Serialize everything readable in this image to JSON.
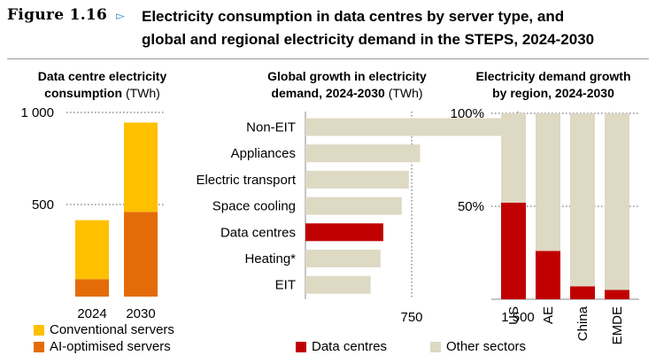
{
  "figure": {
    "label": "Figure 1.16",
    "title_line1": "Electricity consumption in data centres by server type, and",
    "title_line2": "global and regional electricity demand in the STEPS, 2024-2030"
  },
  "colors": {
    "conventional": "#FFC000",
    "ai_optimised": "#E36C09",
    "data_centres": "#C00000",
    "other_sectors": "#DDD9C3",
    "accent": "#3A8FC4"
  },
  "chart_data": [
    {
      "type": "bar",
      "stacked": true,
      "title_bold": "Data centre electricity consumption",
      "title_unit": "(TWh)",
      "categories": [
        "2024",
        "2030"
      ],
      "series": [
        {
          "name": "AI-optimised servers",
          "color_key": "ai_optimised",
          "values": [
            95,
            460
          ]
        },
        {
          "name": "Conventional servers",
          "color_key": "conventional",
          "values": [
            320,
            485
          ]
        }
      ],
      "ylim": [
        0,
        1000
      ],
      "yticks": [
        500,
        1000
      ],
      "ytick_labels": [
        "500",
        "1 000"
      ],
      "grid": "dotted"
    },
    {
      "type": "bar",
      "orientation": "horizontal",
      "title_line1": "Global growth in electricity",
      "title_line2_bold": "demand, 2024-2030",
      "title_unit": "(TWh)",
      "categories": [
        "Non-EIT",
        "Appliances",
        "Electric transport",
        "Space cooling",
        "Data centres",
        "Heating*",
        "EIT"
      ],
      "values": [
        1480,
        810,
        730,
        680,
        550,
        530,
        460
      ],
      "highlight": "Data centres",
      "xlim": [
        0,
        1650
      ],
      "xticks": [
        750,
        1500
      ],
      "xtick_labels": [
        "750",
        "1 500"
      ],
      "grid": "dotted"
    },
    {
      "type": "bar",
      "stacked": true,
      "title_line1": "Electricity demand growth",
      "title_line2": "by region, 2024-2030",
      "categories": [
        "US",
        "AE",
        "China",
        "EMDE"
      ],
      "series": [
        {
          "name": "Data centres",
          "color_key": "data_centres",
          "values": [
            52,
            26,
            7,
            5
          ]
        },
        {
          "name": "Other sectors",
          "color_key": "other_sectors",
          "values": [
            48,
            74,
            93,
            95
          ]
        }
      ],
      "ylim": [
        0,
        100
      ],
      "yticks": [
        50,
        100
      ],
      "ytick_labels": [
        "50%",
        "100%"
      ],
      "grid": "dotted"
    }
  ],
  "legend": {
    "conventional": "Conventional servers",
    "ai_optimised": "AI-optimised servers",
    "data_centres": "Data centres",
    "other_sectors": "Other sectors"
  }
}
